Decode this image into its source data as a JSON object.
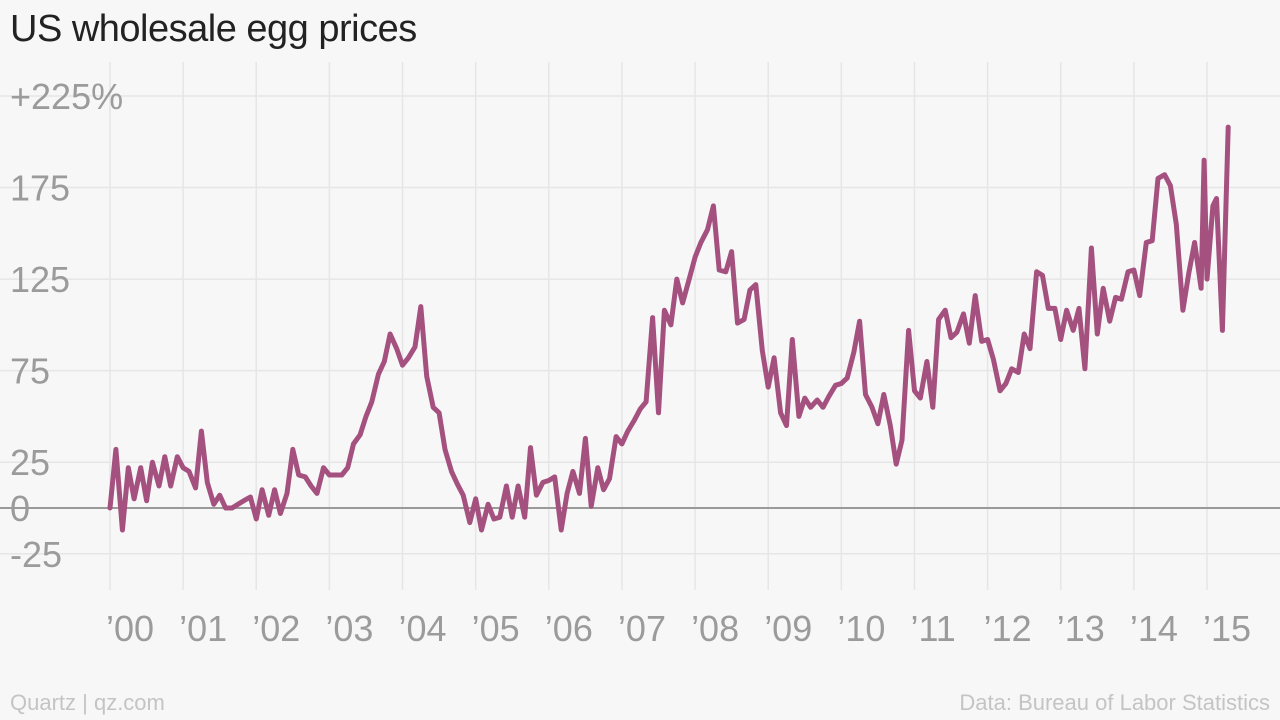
{
  "title": "US wholesale egg prices",
  "footer": {
    "left": "Quartz | qz.com",
    "right": "Data: Bureau of Labor Statistics"
  },
  "colors": {
    "line": "#a5517f",
    "grid": "#e6e6e6",
    "zero_line": "#9a9a9a",
    "tick_text": "#9b9b9b",
    "background": "#f7f7f7"
  },
  "chart_data": {
    "type": "line",
    "title": "US wholesale egg prices",
    "xlabel": "",
    "ylabel": "",
    "ylim": [
      -40,
      235
    ],
    "xlim": [
      2000.0,
      2015.25
    ],
    "y_ticks": [
      {
        "value": 225,
        "label": "+225%"
      },
      {
        "value": 175,
        "label": "175"
      },
      {
        "value": 125,
        "label": "125"
      },
      {
        "value": 75,
        "label": "75"
      },
      {
        "value": 25,
        "label": "25"
      },
      {
        "value": 0,
        "label": "0"
      },
      {
        "value": -25,
        "label": "-25"
      }
    ],
    "x_ticks": [
      {
        "value": 2000,
        "label": "’00"
      },
      {
        "value": 2001,
        "label": "’01"
      },
      {
        "value": 2002,
        "label": "’02"
      },
      {
        "value": 2003,
        "label": "’03"
      },
      {
        "value": 2004,
        "label": "’04"
      },
      {
        "value": 2005,
        "label": "’05"
      },
      {
        "value": 2006,
        "label": "’06"
      },
      {
        "value": 2007,
        "label": "’07"
      },
      {
        "value": 2008,
        "label": "’08"
      },
      {
        "value": 2009,
        "label": "’09"
      },
      {
        "value": 2010,
        "label": "’10"
      },
      {
        "value": 2011,
        "label": "’11"
      },
      {
        "value": 2012,
        "label": "’12"
      },
      {
        "value": 2013,
        "label": "’13"
      },
      {
        "value": 2014,
        "label": "’14"
      },
      {
        "value": 2015,
        "label": "’15"
      }
    ],
    "grid": true,
    "series": [
      {
        "values": [
          [
            2000.0,
            0
          ],
          [
            2000.08,
            32
          ],
          [
            2000.17,
            -12
          ],
          [
            2000.25,
            22
          ],
          [
            2000.33,
            5
          ],
          [
            2000.42,
            22
          ],
          [
            2000.5,
            4
          ],
          [
            2000.58,
            25
          ],
          [
            2000.67,
            12
          ],
          [
            2000.75,
            28
          ],
          [
            2000.83,
            12
          ],
          [
            2000.92,
            28
          ],
          [
            2001.0,
            22
          ],
          [
            2001.08,
            20
          ],
          [
            2001.17,
            11
          ],
          [
            2001.25,
            42
          ],
          [
            2001.33,
            14
          ],
          [
            2001.42,
            2
          ],
          [
            2001.5,
            7
          ],
          [
            2001.58,
            0
          ],
          [
            2001.67,
            0
          ],
          [
            2001.75,
            2
          ],
          [
            2001.83,
            4
          ],
          [
            2001.92,
            6
          ],
          [
            2002.0,
            -6
          ],
          [
            2002.08,
            10
          ],
          [
            2002.17,
            -4
          ],
          [
            2002.25,
            10
          ],
          [
            2002.33,
            -3
          ],
          [
            2002.42,
            8
          ],
          [
            2002.5,
            32
          ],
          [
            2002.58,
            18
          ],
          [
            2002.67,
            17
          ],
          [
            2002.75,
            12
          ],
          [
            2002.83,
            8
          ],
          [
            2002.92,
            22
          ],
          [
            2003.0,
            18
          ],
          [
            2003.08,
            18
          ],
          [
            2003.17,
            18
          ],
          [
            2003.25,
            22
          ],
          [
            2003.33,
            35
          ],
          [
            2003.42,
            40
          ],
          [
            2003.5,
            50
          ],
          [
            2003.58,
            58
          ],
          [
            2003.67,
            73
          ],
          [
            2003.75,
            80
          ],
          [
            2003.83,
            95
          ],
          [
            2003.92,
            87
          ],
          [
            2004.0,
            78
          ],
          [
            2004.08,
            82
          ],
          [
            2004.17,
            88
          ],
          [
            2004.25,
            110
          ],
          [
            2004.33,
            72
          ],
          [
            2004.42,
            55
          ],
          [
            2004.5,
            52
          ],
          [
            2004.58,
            32
          ],
          [
            2004.67,
            20
          ],
          [
            2004.75,
            13
          ],
          [
            2004.83,
            7
          ],
          [
            2004.92,
            -8
          ],
          [
            2005.0,
            5
          ],
          [
            2005.08,
            -12
          ],
          [
            2005.17,
            2
          ],
          [
            2005.25,
            -6
          ],
          [
            2005.33,
            -5
          ],
          [
            2005.42,
            12
          ],
          [
            2005.5,
            -5
          ],
          [
            2005.58,
            12
          ],
          [
            2005.67,
            -5
          ],
          [
            2005.75,
            33
          ],
          [
            2005.83,
            7
          ],
          [
            2005.92,
            14
          ],
          [
            2006.0,
            15
          ],
          [
            2006.08,
            17
          ],
          [
            2006.17,
            -12
          ],
          [
            2006.25,
            8
          ],
          [
            2006.33,
            20
          ],
          [
            2006.42,
            8
          ],
          [
            2006.5,
            38
          ],
          [
            2006.58,
            1
          ],
          [
            2006.67,
            22
          ],
          [
            2006.75,
            10
          ],
          [
            2006.83,
            16
          ],
          [
            2006.92,
            39
          ],
          [
            2007.0,
            35
          ],
          [
            2007.08,
            42
          ],
          [
            2007.17,
            48
          ],
          [
            2007.25,
            54
          ],
          [
            2007.33,
            58
          ],
          [
            2007.42,
            104
          ],
          [
            2007.5,
            52
          ],
          [
            2007.58,
            108
          ],
          [
            2007.67,
            100
          ],
          [
            2007.75,
            125
          ],
          [
            2007.83,
            112
          ],
          [
            2007.92,
            125
          ],
          [
            2008.0,
            137
          ],
          [
            2008.08,
            145
          ],
          [
            2008.17,
            152
          ],
          [
            2008.25,
            165
          ],
          [
            2008.33,
            130
          ],
          [
            2008.42,
            129
          ],
          [
            2008.5,
            140
          ],
          [
            2008.58,
            101
          ],
          [
            2008.67,
            103
          ],
          [
            2008.75,
            119
          ],
          [
            2008.83,
            122
          ],
          [
            2008.92,
            86
          ],
          [
            2009.0,
            66
          ],
          [
            2009.08,
            82
          ],
          [
            2009.17,
            52
          ],
          [
            2009.25,
            45
          ],
          [
            2009.33,
            92
          ],
          [
            2009.42,
            50
          ],
          [
            2009.5,
            60
          ],
          [
            2009.58,
            55
          ],
          [
            2009.67,
            59
          ],
          [
            2009.75,
            55
          ],
          [
            2009.83,
            61
          ],
          [
            2009.92,
            67
          ],
          [
            2010.0,
            68
          ],
          [
            2010.08,
            71
          ],
          [
            2010.17,
            85
          ],
          [
            2010.25,
            102
          ],
          [
            2010.33,
            62
          ],
          [
            2010.42,
            55
          ],
          [
            2010.5,
            46
          ],
          [
            2010.58,
            62
          ],
          [
            2010.67,
            45
          ],
          [
            2010.75,
            24
          ],
          [
            2010.83,
            37
          ],
          [
            2010.92,
            97
          ],
          [
            2011.0,
            64
          ],
          [
            2011.08,
            60
          ],
          [
            2011.17,
            80
          ],
          [
            2011.25,
            55
          ],
          [
            2011.33,
            103
          ],
          [
            2011.42,
            108
          ],
          [
            2011.5,
            93
          ],
          [
            2011.58,
            96
          ],
          [
            2011.67,
            106
          ],
          [
            2011.75,
            90
          ],
          [
            2011.83,
            116
          ],
          [
            2011.92,
            91
          ],
          [
            2012.0,
            92
          ],
          [
            2012.08,
            81
          ],
          [
            2012.17,
            64
          ],
          [
            2012.25,
            68
          ],
          [
            2012.33,
            76
          ],
          [
            2012.42,
            74
          ],
          [
            2012.5,
            95
          ],
          [
            2012.58,
            87
          ],
          [
            2012.67,
            129
          ],
          [
            2012.75,
            127
          ],
          [
            2012.83,
            109
          ],
          [
            2012.92,
            109
          ],
          [
            2013.0,
            92
          ],
          [
            2013.08,
            108
          ],
          [
            2013.17,
            97
          ],
          [
            2013.25,
            109
          ],
          [
            2013.33,
            76
          ],
          [
            2013.42,
            142
          ],
          [
            2013.5,
            95
          ],
          [
            2013.58,
            120
          ],
          [
            2013.67,
            102
          ],
          [
            2013.75,
            115
          ],
          [
            2013.83,
            114
          ],
          [
            2013.92,
            129
          ],
          [
            2014.0,
            130
          ],
          [
            2014.08,
            116
          ],
          [
            2014.17,
            145
          ],
          [
            2014.25,
            146
          ],
          [
            2014.33,
            180
          ],
          [
            2014.42,
            182
          ],
          [
            2014.5,
            176
          ],
          [
            2014.58,
            155
          ],
          [
            2014.67,
            108
          ],
          [
            2014.75,
            128
          ],
          [
            2014.83,
            145
          ],
          [
            2014.92,
            120
          ],
          [
            2014.92,
            120
          ],
          [
            2014.96,
            190
          ],
          [
            2015.0,
            125
          ],
          [
            2015.08,
            165
          ],
          [
            2015.13,
            169
          ],
          [
            2015.21,
            97
          ],
          [
            2015.29,
            208
          ]
        ]
      }
    ]
  }
}
